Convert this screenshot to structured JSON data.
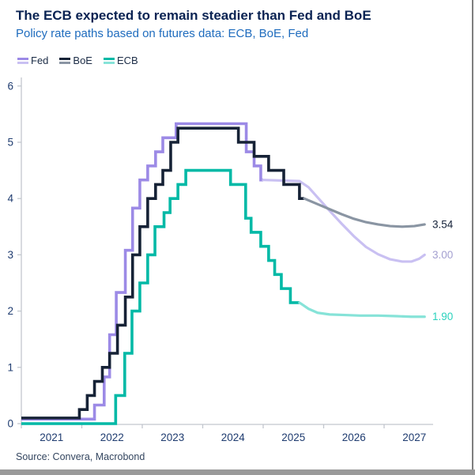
{
  "header": {
    "title": "The ECB expected to remain steadier than Fed and BoE",
    "subtitle": "Policy rate paths based on futures data: ECB, BoE, Fed"
  },
  "colors": {
    "title": "#0a2353",
    "subtitle": "#1f6cbe",
    "axis_line": "#c2c7ce",
    "axis_label": "#1f3c70",
    "legend_label": "#1a2b45",
    "source_text": "#33455f",
    "window_border_right": "#7f7f7f",
    "window_border_bottom": "#9a9a9a"
  },
  "legend": {
    "items": [
      {
        "label": "Fed",
        "history_color": "#9c8ae6",
        "forecast_color": "#c9c0f2"
      },
      {
        "label": "BoE",
        "history_color": "#162236",
        "forecast_color": "#8a95a3"
      },
      {
        "label": "ECB",
        "history_color": "#00b9a6",
        "forecast_color": "#86e3d8"
      }
    ]
  },
  "source": "Source: Convera, Macrobond",
  "chart_data": {
    "type": "line",
    "title": "The ECB expected to remain steadier than Fed and BoE",
    "subtitle": "Policy rate paths based on futures data: ECB, BoE, Fed",
    "xlabel": "",
    "ylabel": "",
    "x_axis": {
      "tick_years": [
        2021,
        2022,
        2023,
        2024,
        2025,
        2026,
        2027
      ],
      "range": [
        2021.0,
        2027.82
      ]
    },
    "y_axis": {
      "ticks": [
        0,
        1,
        2,
        3,
        4,
        5,
        6
      ],
      "range": [
        0,
        6.1
      ],
      "grid": false
    },
    "legend_position": "top-left",
    "draw_order": [
      0,
      2,
      1
    ],
    "series": [
      {
        "name": "Fed",
        "history_color": "#9c8ae6",
        "forecast_color": "#c9c0f2",
        "end_label": "3.00",
        "end_label_color": "#a39fd0",
        "history_steps": [
          [
            2021.0,
            0.08
          ],
          [
            2022.21,
            0.33
          ],
          [
            2022.37,
            0.83
          ],
          [
            2022.46,
            1.58
          ],
          [
            2022.57,
            2.33
          ],
          [
            2022.72,
            3.08
          ],
          [
            2022.84,
            3.83
          ],
          [
            2022.96,
            4.33
          ],
          [
            2023.09,
            4.58
          ],
          [
            2023.22,
            4.83
          ],
          [
            2023.34,
            5.08
          ],
          [
            2023.56,
            5.33
          ],
          [
            2024.72,
            4.83
          ],
          [
            2024.85,
            4.58
          ],
          [
            2024.96,
            4.33
          ]
        ],
        "forecast": [
          [
            2025.0,
            4.33
          ],
          [
            2025.6,
            4.31
          ],
          [
            2025.75,
            4.2
          ],
          [
            2025.9,
            4.02
          ],
          [
            2026.1,
            3.78
          ],
          [
            2026.3,
            3.55
          ],
          [
            2026.5,
            3.33
          ],
          [
            2026.7,
            3.14
          ],
          [
            2026.9,
            3.01
          ],
          [
            2027.1,
            2.92
          ],
          [
            2027.3,
            2.88
          ],
          [
            2027.45,
            2.88
          ],
          [
            2027.58,
            2.93
          ],
          [
            2027.67,
            3.0
          ]
        ]
      },
      {
        "name": "BoE",
        "history_color": "#162236",
        "forecast_color": "#8a95a3",
        "end_label": "3.54",
        "end_label_color": "#16233a",
        "history_steps": [
          [
            2021.0,
            0.1
          ],
          [
            2021.96,
            0.25
          ],
          [
            2022.09,
            0.5
          ],
          [
            2022.21,
            0.75
          ],
          [
            2022.34,
            1.0
          ],
          [
            2022.46,
            1.25
          ],
          [
            2022.59,
            1.75
          ],
          [
            2022.72,
            2.25
          ],
          [
            2022.84,
            3.0
          ],
          [
            2022.96,
            3.5
          ],
          [
            2023.09,
            4.0
          ],
          [
            2023.22,
            4.25
          ],
          [
            2023.34,
            4.5
          ],
          [
            2023.47,
            5.0
          ],
          [
            2023.59,
            5.25
          ],
          [
            2024.59,
            5.0
          ],
          [
            2024.85,
            4.75
          ],
          [
            2025.09,
            4.5
          ],
          [
            2025.34,
            4.25
          ],
          [
            2025.6,
            4.0
          ]
        ],
        "forecast": [
          [
            2025.68,
            4.0
          ],
          [
            2025.9,
            3.9
          ],
          [
            2026.1,
            3.81
          ],
          [
            2026.3,
            3.72
          ],
          [
            2026.5,
            3.64
          ],
          [
            2026.7,
            3.58
          ],
          [
            2026.9,
            3.54
          ],
          [
            2027.1,
            3.51
          ],
          [
            2027.3,
            3.5
          ],
          [
            2027.5,
            3.51
          ],
          [
            2027.67,
            3.54
          ]
        ]
      },
      {
        "name": "ECB",
        "history_color": "#00b9a6",
        "forecast_color": "#86e3d8",
        "end_label": "1.90",
        "end_label_color": "#2ad2bd",
        "history_steps": [
          [
            2021.0,
            0.0
          ],
          [
            2022.56,
            0.5
          ],
          [
            2022.71,
            1.25
          ],
          [
            2022.83,
            2.0
          ],
          [
            2022.96,
            2.5
          ],
          [
            2023.09,
            3.0
          ],
          [
            2023.21,
            3.5
          ],
          [
            2023.36,
            3.75
          ],
          [
            2023.46,
            4.0
          ],
          [
            2023.59,
            4.25
          ],
          [
            2023.72,
            4.5
          ],
          [
            2024.46,
            4.25
          ],
          [
            2024.71,
            3.65
          ],
          [
            2024.8,
            3.4
          ],
          [
            2024.96,
            3.15
          ],
          [
            2025.09,
            2.9
          ],
          [
            2025.19,
            2.65
          ],
          [
            2025.3,
            2.4
          ],
          [
            2025.45,
            2.15
          ]
        ],
        "forecast": [
          [
            2025.6,
            2.15
          ],
          [
            2025.75,
            2.04
          ],
          [
            2025.9,
            1.97
          ],
          [
            2026.1,
            1.94
          ],
          [
            2026.35,
            1.93
          ],
          [
            2026.6,
            1.92
          ],
          [
            2026.9,
            1.92
          ],
          [
            2027.2,
            1.91
          ],
          [
            2027.45,
            1.9
          ],
          [
            2027.67,
            1.9
          ]
        ]
      }
    ]
  }
}
